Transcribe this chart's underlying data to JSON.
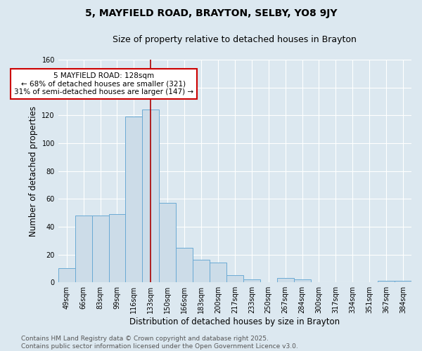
{
  "title1": "5, MAYFIELD ROAD, BRAYTON, SELBY, YO8 9JY",
  "title2": "Size of property relative to detached houses in Brayton",
  "xlabel": "Distribution of detached houses by size in Brayton",
  "ylabel": "Number of detached properties",
  "footnote": "Contains HM Land Registry data © Crown copyright and database right 2025.\nContains public sector information licensed under the Open Government Licence v3.0.",
  "bar_labels": [
    "49sqm",
    "66sqm",
    "83sqm",
    "99sqm",
    "116sqm",
    "133sqm",
    "150sqm",
    "166sqm",
    "183sqm",
    "200sqm",
    "217sqm",
    "233sqm",
    "250sqm",
    "267sqm",
    "284sqm",
    "300sqm",
    "317sqm",
    "334sqm",
    "351sqm",
    "367sqm",
    "384sqm"
  ],
  "bar_values": [
    10,
    48,
    48,
    49,
    119,
    124,
    57,
    25,
    16,
    14,
    5,
    2,
    0,
    3,
    2,
    0,
    0,
    0,
    0,
    1,
    1
  ],
  "bar_color": "#ccdce8",
  "bar_edge_color": "#6aaad4",
  "vline_x_index": 5,
  "vline_color": "#aa0000",
  "ylim": [
    0,
    160
  ],
  "yticks": [
    0,
    20,
    40,
    60,
    80,
    100,
    120,
    140,
    160
  ],
  "annotation_text": "5 MAYFIELD ROAD: 128sqm\n← 68% of detached houses are smaller (321)\n31% of semi-detached houses are larger (147) →",
  "annotation_box_color": "#ffffff",
  "annotation_box_edgecolor": "#cc0000",
  "bg_color": "#dce8f0",
  "plot_bg_color": "#dce8f0",
  "grid_color": "#ffffff",
  "title_fontsize": 10,
  "subtitle_fontsize": 9,
  "label_fontsize": 8.5,
  "tick_fontsize": 7,
  "annot_fontsize": 7.5,
  "footnote_fontsize": 6.5
}
